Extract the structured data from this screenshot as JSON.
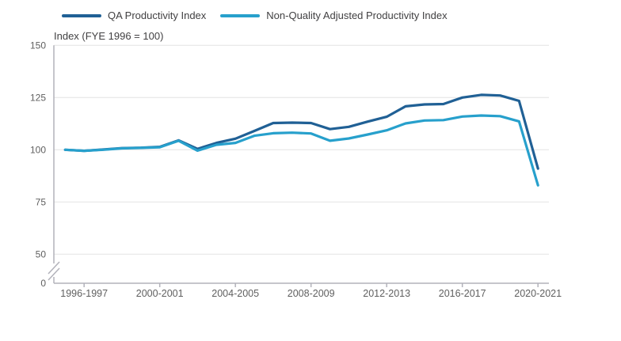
{
  "legend": {
    "items": [
      {
        "label": "QA Productivity Index",
        "color": "#206095"
      },
      {
        "label": "Non-Quality Adjusted Productivity Index",
        "color": "#27A0CC"
      }
    ]
  },
  "axis_title": "Index (FYE 1996 = 100)",
  "chart_data": {
    "type": "line",
    "title": "",
    "ylabel": "Index (FYE 1996 = 100)",
    "xlabel": "",
    "grid": "horizontal",
    "legend_position": "top",
    "y_axis_break_between": [
      50,
      0
    ],
    "y_ticks": [
      150,
      125,
      100,
      75,
      50,
      0
    ],
    "ylim_shown": [
      50,
      150
    ],
    "categories": [
      "1995-1996",
      "1996-1997",
      "1997-1998",
      "1998-1999",
      "1999-2000",
      "2000-2001",
      "2001-2002",
      "2002-2003",
      "2003-2004",
      "2004-2005",
      "2005-2006",
      "2006-2007",
      "2007-2008",
      "2008-2009",
      "2009-2010",
      "2010-2011",
      "2011-2012",
      "2012-2013",
      "2013-2014",
      "2014-2015",
      "2015-2016",
      "2016-2017",
      "2017-2018",
      "2018-2019",
      "2019-2020",
      "2020-2021"
    ],
    "x_tick_labels": [
      "1996-1997",
      "2000-2001",
      "2004-2005",
      "2008-2009",
      "2012-2013",
      "2016-2017",
      "2020-2021"
    ],
    "x_tick_category_indexes": [
      1,
      5,
      9,
      13,
      17,
      21,
      25
    ],
    "series": [
      {
        "name": "QA Productivity Index",
        "color": "#206095",
        "values": [
          100.0,
          99.5,
          100.1,
          100.8,
          101.0,
          101.4,
          104.5,
          100.4,
          103.3,
          105.3,
          109.0,
          112.8,
          113.0,
          112.8,
          109.9,
          111.0,
          113.5,
          115.8,
          120.8,
          121.7,
          121.9,
          125.0,
          126.3,
          126.0,
          123.4,
          91.0
        ]
      },
      {
        "name": "Non-Quality Adjusted Productivity Index",
        "color": "#27A0CC",
        "values": [
          100.0,
          99.5,
          100.0,
          100.7,
          100.9,
          101.2,
          104.3,
          99.6,
          102.4,
          103.3,
          106.7,
          107.9,
          108.2,
          107.8,
          104.3,
          105.4,
          107.3,
          109.3,
          112.6,
          114.0,
          114.2,
          115.9,
          116.4,
          116.1,
          113.6,
          83.0
        ]
      }
    ]
  },
  "colors": {
    "grid": "#e4e4e4",
    "axis": "#b2b2ba",
    "tick_label": "#5f5f5f",
    "text": "#414042"
  }
}
